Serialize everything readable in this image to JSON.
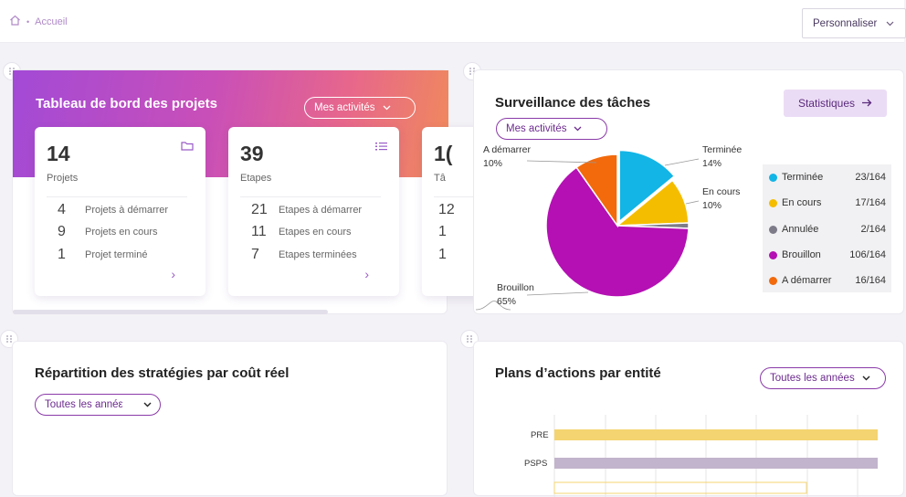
{
  "breadcrumb": {
    "home_icon": "home-icon",
    "label": "Accueil"
  },
  "header": {
    "customize_label": "Personnaliser",
    "customize_icon": "chevron-down-icon"
  },
  "projects_card": {
    "title": "Tableau de bord des projets",
    "filter_label": "Mes activités",
    "stats": [
      {
        "value": "14",
        "label": "Projets",
        "icon": "folder-icon",
        "rows": [
          {
            "n": "4",
            "text": "Projets à démarrer"
          },
          {
            "n": "9",
            "text": "Projets en cours"
          },
          {
            "n": "1",
            "text": "Projet terminé"
          }
        ]
      },
      {
        "value": "39",
        "label": "Etapes",
        "icon": "list-icon",
        "rows": [
          {
            "n": "21",
            "text": "Etapes à démarrer"
          },
          {
            "n": "11",
            "text": "Etapes en cours"
          },
          {
            "n": "7",
            "text": "Etapes terminées"
          }
        ]
      },
      {
        "value": "1(",
        "label": "Tâ",
        "rows": [
          {
            "n": "12"
          },
          {
            "n": "1"
          },
          {
            "n": "1"
          }
        ]
      }
    ]
  },
  "tasks_card": {
    "title": "Surveillance des tâches",
    "filter_label": "Mes activités",
    "stats_button": "Statistiques",
    "pie": [
      {
        "name": "Terminée",
        "pct": "14%",
        "count": "23/164",
        "value": 23,
        "color": "#12b5e6"
      },
      {
        "name": "En cours",
        "pct": "10%",
        "count": "17/164",
        "value": 17,
        "color": "#f5bd00"
      },
      {
        "name": "Annulée",
        "count": "2/164",
        "value": 2,
        "color": "#7d7b88"
      },
      {
        "name": "Brouillon",
        "pct": "65%",
        "count": "106/164",
        "value": 106,
        "color": "#b410b3"
      },
      {
        "name": "A démarrer",
        "pct": "10%",
        "count": "16/164",
        "value": 16,
        "color": "#f26a0c"
      }
    ]
  },
  "strategies_card": {
    "title": "Répartition des stratégies par coût réel",
    "filter_label": "Toutes les annéε"
  },
  "plans_card": {
    "title": "Plans d’actions par entité",
    "filter_label": "Toutes les années",
    "bars": [
      {
        "label": "PRE",
        "color": "#f4d470"
      },
      {
        "label": "PSPS",
        "color": "#c2b4cc"
      }
    ]
  }
}
